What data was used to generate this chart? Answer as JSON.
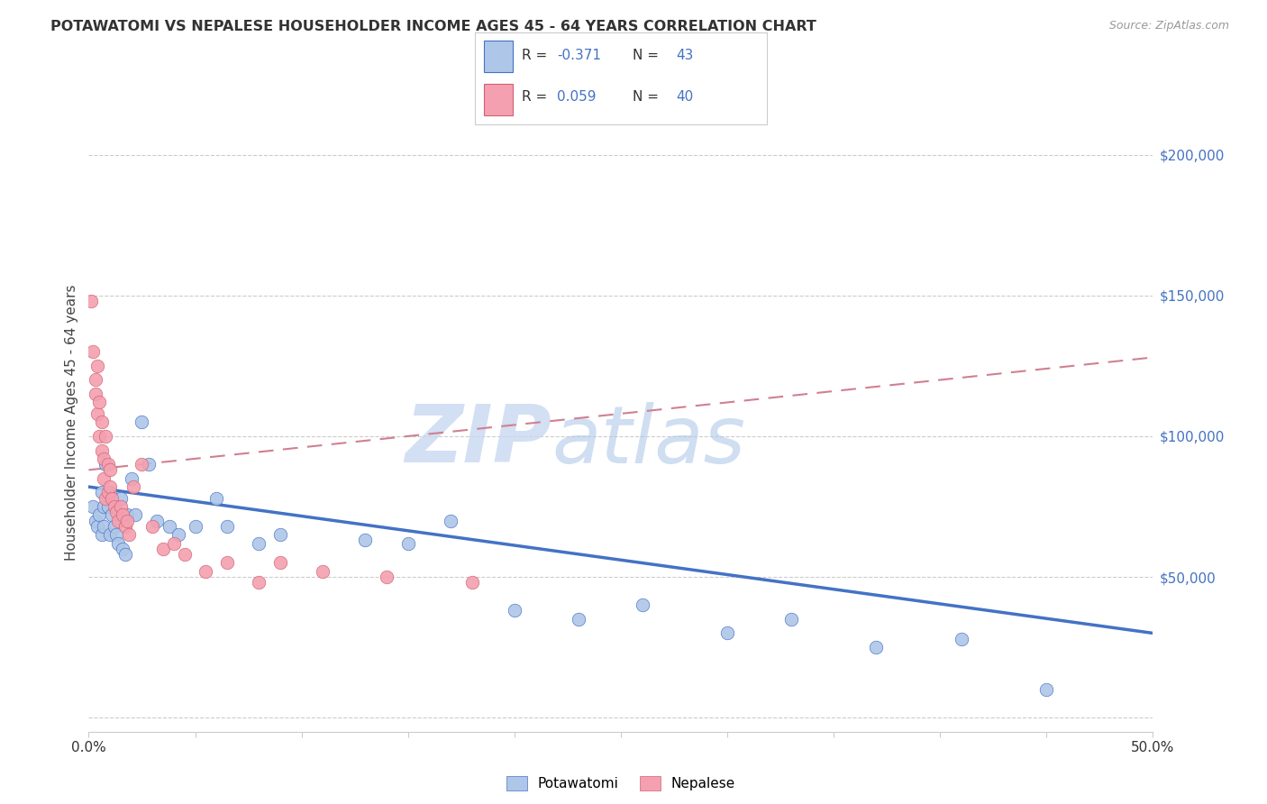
{
  "title": "POTAWATOMI VS NEPALESE HOUSEHOLDER INCOME AGES 45 - 64 YEARS CORRELATION CHART",
  "source": "Source: ZipAtlas.com",
  "ylabel": "Householder Income Ages 45 - 64 years",
  "x_min": 0.0,
  "x_max": 0.5,
  "y_min": -5000,
  "y_max": 215000,
  "y_ticks": [
    0,
    50000,
    100000,
    150000,
    200000
  ],
  "potawatomi_color": "#aec6e8",
  "potawatomi_edge": "#4472c4",
  "nepalese_color": "#f4a0b0",
  "nepalese_edge": "#d06070",
  "trendline_pot_color": "#4472c4",
  "trendline_nep_color": "#d08090",
  "grid_color": "#cccccc",
  "watermark_color": "#dce8f5",
  "blue_text": "#4472c4",
  "pot_r": "-0.371",
  "nep_r": "0.059",
  "pot_n": "43",
  "nep_n": "40",
  "potawatomi_x": [
    0.002,
    0.003,
    0.004,
    0.005,
    0.006,
    0.006,
    0.007,
    0.007,
    0.008,
    0.009,
    0.01,
    0.01,
    0.011,
    0.012,
    0.013,
    0.014,
    0.015,
    0.016,
    0.017,
    0.018,
    0.02,
    0.022,
    0.025,
    0.028,
    0.032,
    0.038,
    0.042,
    0.05,
    0.06,
    0.065,
    0.08,
    0.09,
    0.13,
    0.15,
    0.17,
    0.2,
    0.23,
    0.26,
    0.3,
    0.33,
    0.37,
    0.41,
    0.45
  ],
  "potawatomi_y": [
    75000,
    70000,
    68000,
    72000,
    65000,
    80000,
    75000,
    68000,
    90000,
    75000,
    65000,
    80000,
    72000,
    68000,
    65000,
    62000,
    78000,
    60000,
    58000,
    72000,
    85000,
    72000,
    105000,
    90000,
    70000,
    68000,
    65000,
    68000,
    78000,
    68000,
    62000,
    65000,
    63000,
    62000,
    70000,
    38000,
    35000,
    40000,
    30000,
    35000,
    25000,
    28000,
    10000
  ],
  "nepalese_x": [
    0.001,
    0.002,
    0.003,
    0.003,
    0.004,
    0.004,
    0.005,
    0.005,
    0.006,
    0.006,
    0.007,
    0.007,
    0.008,
    0.008,
    0.009,
    0.009,
    0.01,
    0.01,
    0.011,
    0.012,
    0.013,
    0.014,
    0.015,
    0.016,
    0.017,
    0.018,
    0.019,
    0.021,
    0.025,
    0.03,
    0.035,
    0.04,
    0.045,
    0.055,
    0.065,
    0.08,
    0.09,
    0.11,
    0.14,
    0.18
  ],
  "nepalese_y": [
    148000,
    130000,
    120000,
    115000,
    108000,
    125000,
    100000,
    112000,
    105000,
    95000,
    92000,
    85000,
    100000,
    78000,
    90000,
    80000,
    82000,
    88000,
    78000,
    75000,
    73000,
    70000,
    75000,
    72000,
    68000,
    70000,
    65000,
    82000,
    90000,
    68000,
    60000,
    62000,
    58000,
    52000,
    55000,
    48000,
    55000,
    52000,
    50000,
    48000
  ],
  "trendline_pot_x0": 0.0,
  "trendline_pot_y0": 82000,
  "trendline_pot_x1": 0.5,
  "trendline_pot_y1": 30000,
  "trendline_nep_x0": 0.0,
  "trendline_nep_y0": 88000,
  "trendline_nep_x1": 0.5,
  "trendline_nep_y1": 128000
}
